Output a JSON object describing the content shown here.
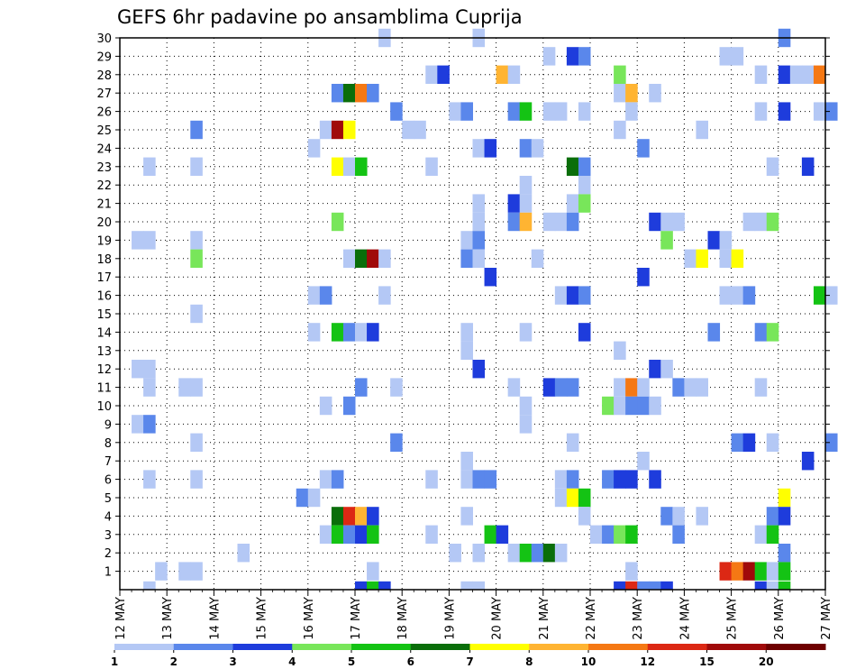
{
  "chart_data": {
    "type": "heatmap",
    "title": "GEFS 6hr padavine po ansamblima Cuprija",
    "xlabel": "",
    "ylabel": "",
    "x_tick_labels": [
      "12 MAY",
      "13 MAY",
      "14 MAY",
      "15 MAY",
      "16 MAY",
      "17 MAY",
      "18 MAY",
      "19 MAY",
      "20 MAY",
      "21 MAY",
      "22 MAY",
      "23 MAY",
      "24 MAY",
      "25 MAY",
      "26 MAY",
      "27 MAY"
    ],
    "x_range_days": [
      0,
      15
    ],
    "steps_per_day": 4,
    "y_tick_labels": [
      "1",
      "2",
      "3",
      "4",
      "5",
      "6",
      "7",
      "8",
      "9",
      "10",
      "11",
      "12",
      "13",
      "14",
      "15",
      "16",
      "17",
      "18",
      "19",
      "20",
      "21",
      "22",
      "23",
      "24",
      "25",
      "26",
      "27",
      "28",
      "29",
      "30"
    ],
    "y_range": [
      0,
      30
    ],
    "grid": "dotted",
    "colorbar": {
      "labels": [
        "1",
        "2",
        "3",
        "4",
        "5",
        "6",
        "7",
        "8",
        "10",
        "12",
        "15",
        "20"
      ],
      "colors": [
        "#b4c8f5",
        "#5a87eb",
        "#1e3cdc",
        "#78e65a",
        "#14c314",
        "#0a6e0a",
        "#ffff00",
        "#ffb432",
        "#f57814",
        "#dc2814",
        "#a00a0a",
        "#6e0000"
      ]
    },
    "cells_note": "each cell: [member_row, time_step_index(6h from 12 MAY 00Z), color_class]",
    "cells": [
      [
        30,
        22,
        0
      ],
      [
        30,
        30,
        0
      ],
      [
        30,
        56,
        1
      ],
      [
        29,
        36,
        0
      ],
      [
        29,
        38,
        2
      ],
      [
        29,
        39,
        1
      ],
      [
        29,
        51,
        0
      ],
      [
        29,
        52,
        0
      ],
      [
        28,
        26,
        0
      ],
      [
        28,
        27,
        2
      ],
      [
        28,
        32,
        7
      ],
      [
        28,
        33,
        0
      ],
      [
        28,
        42,
        3
      ],
      [
        28,
        54,
        0
      ],
      [
        28,
        56,
        2
      ],
      [
        28,
        57,
        0
      ],
      [
        28,
        58,
        0
      ],
      [
        28,
        59,
        8
      ],
      [
        27,
        18,
        1
      ],
      [
        27,
        19,
        5
      ],
      [
        27,
        20,
        8
      ],
      [
        27,
        21,
        1
      ],
      [
        27,
        42,
        0
      ],
      [
        27,
        43,
        7
      ],
      [
        27,
        45,
        0
      ],
      [
        26,
        23,
        1
      ],
      [
        26,
        28,
        0
      ],
      [
        26,
        29,
        1
      ],
      [
        26,
        33,
        1
      ],
      [
        26,
        34,
        4
      ],
      [
        26,
        36,
        0
      ],
      [
        26,
        37,
        0
      ],
      [
        26,
        39,
        0
      ],
      [
        26,
        43,
        0
      ],
      [
        26,
        54,
        0
      ],
      [
        26,
        56,
        2
      ],
      [
        26,
        59,
        0
      ],
      [
        26,
        60,
        1
      ],
      [
        25,
        6,
        1
      ],
      [
        25,
        17,
        0
      ],
      [
        25,
        18,
        10
      ],
      [
        25,
        19,
        6
      ],
      [
        25,
        24,
        0
      ],
      [
        25,
        25,
        0
      ],
      [
        25,
        42,
        0
      ],
      [
        25,
        49,
        0
      ],
      [
        24,
        16,
        0
      ],
      [
        24,
        30,
        0
      ],
      [
        24,
        31,
        2
      ],
      [
        24,
        34,
        1
      ],
      [
        24,
        35,
        0
      ],
      [
        24,
        44,
        1
      ],
      [
        23,
        2,
        0
      ],
      [
        23,
        6,
        0
      ],
      [
        23,
        18,
        6
      ],
      [
        23,
        19,
        0
      ],
      [
        23,
        20,
        4
      ],
      [
        23,
        26,
        0
      ],
      [
        23,
        38,
        5
      ],
      [
        23,
        39,
        1
      ],
      [
        23,
        55,
        0
      ],
      [
        23,
        58,
        2
      ],
      [
        22,
        34,
        0
      ],
      [
        22,
        39,
        0
      ],
      [
        21,
        30,
        0
      ],
      [
        21,
        33,
        2
      ],
      [
        21,
        34,
        0
      ],
      [
        21,
        38,
        0
      ],
      [
        21,
        39,
        3
      ],
      [
        20,
        18,
        3
      ],
      [
        20,
        30,
        0
      ],
      [
        20,
        33,
        1
      ],
      [
        20,
        34,
        7
      ],
      [
        20,
        36,
        0
      ],
      [
        20,
        37,
        0
      ],
      [
        20,
        38,
        1
      ],
      [
        20,
        45,
        2
      ],
      [
        20,
        46,
        0
      ],
      [
        20,
        47,
        0
      ],
      [
        20,
        53,
        0
      ],
      [
        20,
        54,
        0
      ],
      [
        20,
        55,
        3
      ],
      [
        19,
        1,
        0
      ],
      [
        19,
        2,
        0
      ],
      [
        19,
        6,
        0
      ],
      [
        19,
        29,
        0
      ],
      [
        19,
        30,
        1
      ],
      [
        19,
        46,
        3
      ],
      [
        19,
        50,
        2
      ],
      [
        19,
        51,
        0
      ],
      [
        18,
        6,
        3
      ],
      [
        18,
        19,
        0
      ],
      [
        18,
        20,
        5
      ],
      [
        18,
        21,
        10
      ],
      [
        18,
        22,
        0
      ],
      [
        18,
        29,
        1
      ],
      [
        18,
        30,
        0
      ],
      [
        18,
        35,
        0
      ],
      [
        18,
        48,
        0
      ],
      [
        18,
        49,
        6
      ],
      [
        18,
        51,
        0
      ],
      [
        18,
        52,
        6
      ],
      [
        17,
        31,
        2
      ],
      [
        17,
        44,
        2
      ],
      [
        16,
        16,
        0
      ],
      [
        16,
        17,
        1
      ],
      [
        16,
        22,
        0
      ],
      [
        16,
        37,
        0
      ],
      [
        16,
        38,
        2
      ],
      [
        16,
        39,
        1
      ],
      [
        16,
        51,
        0
      ],
      [
        16,
        52,
        0
      ],
      [
        16,
        53,
        1
      ],
      [
        16,
        59,
        4
      ],
      [
        16,
        60,
        0
      ],
      [
        15,
        6,
        0
      ],
      [
        14,
        16,
        0
      ],
      [
        14,
        18,
        4
      ],
      [
        14,
        19,
        1
      ],
      [
        14,
        20,
        0
      ],
      [
        14,
        21,
        2
      ],
      [
        14,
        29,
        0
      ],
      [
        14,
        34,
        0
      ],
      [
        14,
        39,
        2
      ],
      [
        14,
        50,
        1
      ],
      [
        14,
        54,
        1
      ],
      [
        14,
        55,
        3
      ],
      [
        13,
        29,
        0
      ],
      [
        13,
        42,
        0
      ],
      [
        12,
        1,
        0
      ],
      [
        12,
        2,
        0
      ],
      [
        12,
        30,
        2
      ],
      [
        12,
        45,
        2
      ],
      [
        12,
        46,
        0
      ],
      [
        11,
        2,
        0
      ],
      [
        11,
        5,
        0
      ],
      [
        11,
        6,
        0
      ],
      [
        11,
        20,
        1
      ],
      [
        11,
        23,
        0
      ],
      [
        11,
        33,
        0
      ],
      [
        11,
        36,
        2
      ],
      [
        11,
        37,
        1
      ],
      [
        11,
        38,
        1
      ],
      [
        11,
        42,
        0
      ],
      [
        11,
        43,
        8
      ],
      [
        11,
        44,
        0
      ],
      [
        11,
        47,
        1
      ],
      [
        11,
        48,
        0
      ],
      [
        11,
        49,
        0
      ],
      [
        11,
        54,
        0
      ],
      [
        10,
        17,
        0
      ],
      [
        10,
        19,
        1
      ],
      [
        10,
        34,
        0
      ],
      [
        10,
        41,
        3
      ],
      [
        10,
        42,
        0
      ],
      [
        10,
        43,
        1
      ],
      [
        10,
        44,
        1
      ],
      [
        10,
        45,
        0
      ],
      [
        9,
        34,
        0
      ],
      [
        9,
        1,
        0
      ],
      [
        9,
        2,
        1
      ],
      [
        8,
        6,
        0
      ],
      [
        8,
        23,
        1
      ],
      [
        8,
        38,
        0
      ],
      [
        8,
        52,
        1
      ],
      [
        8,
        53,
        2
      ],
      [
        8,
        55,
        0
      ],
      [
        8,
        60,
        1
      ],
      [
        7,
        29,
        0
      ],
      [
        7,
        44,
        0
      ],
      [
        7,
        58,
        2
      ],
      [
        6,
        2,
        0
      ],
      [
        6,
        6,
        0
      ],
      [
        6,
        17,
        0
      ],
      [
        6,
        18,
        1
      ],
      [
        6,
        26,
        0
      ],
      [
        6,
        29,
        0
      ],
      [
        6,
        30,
        1
      ],
      [
        6,
        31,
        1
      ],
      [
        6,
        37,
        0
      ],
      [
        6,
        38,
        1
      ],
      [
        6,
        41,
        1
      ],
      [
        6,
        42,
        2
      ],
      [
        6,
        43,
        2
      ],
      [
        6,
        45,
        2
      ],
      [
        5,
        15,
        1
      ],
      [
        5,
        16,
        0
      ],
      [
        5,
        37,
        0
      ],
      [
        5,
        38,
        6
      ],
      [
        5,
        39,
        4
      ],
      [
        5,
        56,
        6
      ],
      [
        4,
        18,
        5
      ],
      [
        4,
        19,
        9
      ],
      [
        4,
        20,
        7
      ],
      [
        4,
        21,
        2
      ],
      [
        4,
        29,
        0
      ],
      [
        4,
        39,
        0
      ],
      [
        4,
        46,
        1
      ],
      [
        4,
        47,
        0
      ],
      [
        4,
        49,
        0
      ],
      [
        4,
        55,
        1
      ],
      [
        4,
        56,
        2
      ],
      [
        3,
        17,
        0
      ],
      [
        3,
        18,
        4
      ],
      [
        3,
        19,
        1
      ],
      [
        3,
        20,
        2
      ],
      [
        3,
        21,
        4
      ],
      [
        3,
        26,
        0
      ],
      [
        3,
        31,
        4
      ],
      [
        3,
        32,
        2
      ],
      [
        3,
        40,
        0
      ],
      [
        3,
        41,
        1
      ],
      [
        3,
        42,
        3
      ],
      [
        3,
        43,
        4
      ],
      [
        3,
        47,
        1
      ],
      [
        3,
        54,
        0
      ],
      [
        3,
        55,
        4
      ],
      [
        2,
        10,
        0
      ],
      [
        2,
        28,
        0
      ],
      [
        2,
        30,
        0
      ],
      [
        2,
        33,
        0
      ],
      [
        2,
        34,
        4
      ],
      [
        2,
        35,
        1
      ],
      [
        2,
        36,
        5
      ],
      [
        2,
        37,
        0
      ],
      [
        2,
        56,
        1
      ],
      [
        1,
        3,
        0
      ],
      [
        1,
        5,
        0
      ],
      [
        1,
        6,
        0
      ],
      [
        1,
        21,
        0
      ],
      [
        1,
        43,
        0
      ],
      [
        1,
        51,
        9
      ],
      [
        1,
        52,
        8
      ],
      [
        1,
        53,
        10
      ],
      [
        1,
        54,
        4
      ],
      [
        1,
        55,
        0
      ],
      [
        1,
        56,
        4
      ],
      [
        0.4,
        2,
        0
      ],
      [
        0.4,
        20,
        2
      ],
      [
        0.4,
        21,
        4
      ],
      [
        0.4,
        22,
        2
      ],
      [
        0.4,
        29,
        0
      ],
      [
        0.4,
        30,
        0
      ],
      [
        0.4,
        42,
        2
      ],
      [
        0.4,
        43,
        9
      ],
      [
        0.4,
        44,
        1
      ],
      [
        0.4,
        45,
        1
      ],
      [
        0.4,
        46,
        2
      ],
      [
        0.4,
        54,
        2
      ],
      [
        0.4,
        55,
        0
      ],
      [
        0.4,
        56,
        4
      ]
    ]
  }
}
